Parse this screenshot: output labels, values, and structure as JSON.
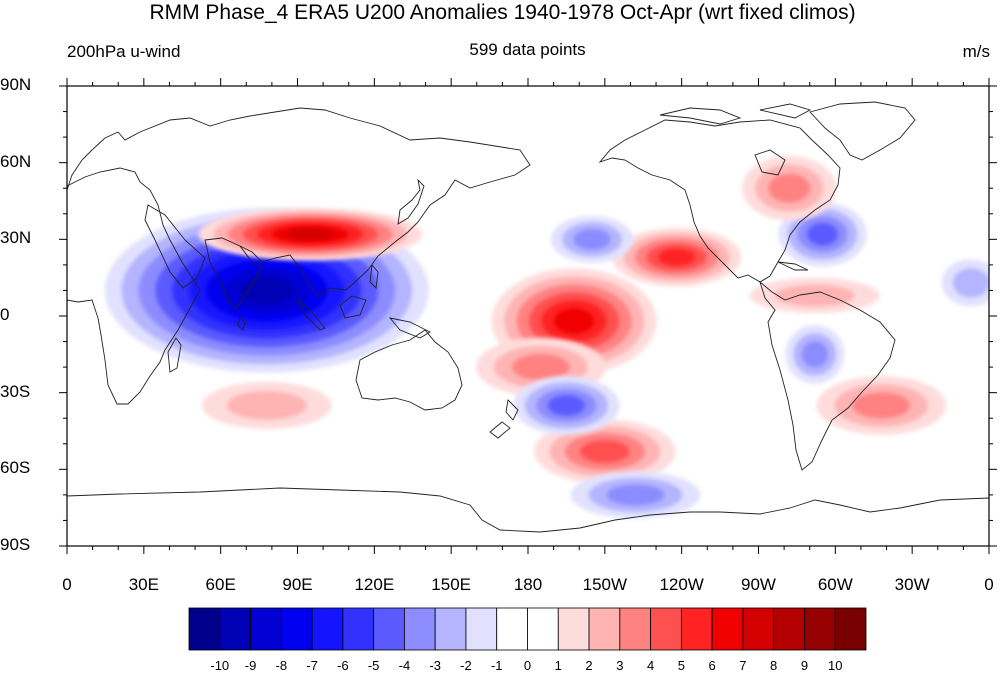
{
  "header": {
    "title": "RMM Phase_4 ERA5 U200 Anomalies 1940-1978 Oct-Apr (wrt fixed climos)",
    "left": "200hPa u-wind",
    "center": "599 data points",
    "right": "m/s"
  },
  "axes": {
    "ylabels": [
      "90N",
      "60N",
      "30N",
      "0",
      "30S",
      "60S",
      "90S"
    ],
    "xlabels": [
      "0",
      "30E",
      "60E",
      "90E",
      "120E",
      "150E",
      "180",
      "150W",
      "120W",
      "90W",
      "60W",
      "30W",
      "0"
    ]
  },
  "colorbar": {
    "labels": [
      "-10",
      "-9",
      "-8",
      "-7",
      "-6",
      "-5",
      "-4",
      "-3",
      "-2",
      "-1",
      "0",
      "1",
      "2",
      "3",
      "4",
      "5",
      "6",
      "7",
      "8",
      "9",
      "10"
    ],
    "colors": [
      "#00008c",
      "#0000b4",
      "#0000d2",
      "#0000f0",
      "#1414ff",
      "#3232ff",
      "#5a5aff",
      "#8c8cff",
      "#b4b4ff",
      "#e1e1ff",
      "#ffffff",
      "#ffffff",
      "#ffdcdc",
      "#ffb4b4",
      "#ff8282",
      "#ff5050",
      "#ff2323",
      "#f00000",
      "#d20000",
      "#b40000",
      "#960000",
      "#780000"
    ]
  },
  "chart_data": {
    "type": "heatmap",
    "title": "RMM Phase_4 ERA5 U200 Anomalies 1940-1978 Oct-Apr (wrt fixed climos)",
    "variable": "200hPa u-wind",
    "units": "m/s",
    "sample_size": 599,
    "projection": "cylindrical equidistant, centered on 180",
    "lon_range": [
      0,
      360
    ],
    "lat_range": [
      -90,
      90
    ],
    "contour_levels": [
      -10,
      -9,
      -8,
      -7,
      -6,
      -5,
      -4,
      -3,
      -2,
      -1,
      0,
      1,
      2,
      3,
      4,
      5,
      6,
      7,
      8,
      9,
      10
    ],
    "anomaly_centers": [
      {
        "lon": 78,
        "lat": 10,
        "value": -9
      },
      {
        "lon": 95,
        "lat": 32,
        "value": 7
      },
      {
        "lon": 198,
        "lat": -2,
        "value": 6
      },
      {
        "lon": 238,
        "lat": 23,
        "value": 5
      },
      {
        "lon": 210,
        "lat": -53,
        "value": 4
      },
      {
        "lon": 185,
        "lat": -20,
        "value": 3
      },
      {
        "lon": 195,
        "lat": -35,
        "value": -4
      },
      {
        "lon": 295,
        "lat": 32,
        "value": -4
      },
      {
        "lon": 282,
        "lat": 50,
        "value": 3
      },
      {
        "lon": 318,
        "lat": -35,
        "value": 3
      },
      {
        "lon": 78,
        "lat": -35,
        "value": 2
      },
      {
        "lon": 222,
        "lat": -70,
        "value": -3
      },
      {
        "lon": 292,
        "lat": -15,
        "value": -3
      },
      {
        "lon": 205,
        "lat": 30,
        "value": -3
      },
      {
        "lon": 292,
        "lat": 8,
        "value": 2
      },
      {
        "lon": 353,
        "lat": 13,
        "value": -2
      }
    ]
  }
}
